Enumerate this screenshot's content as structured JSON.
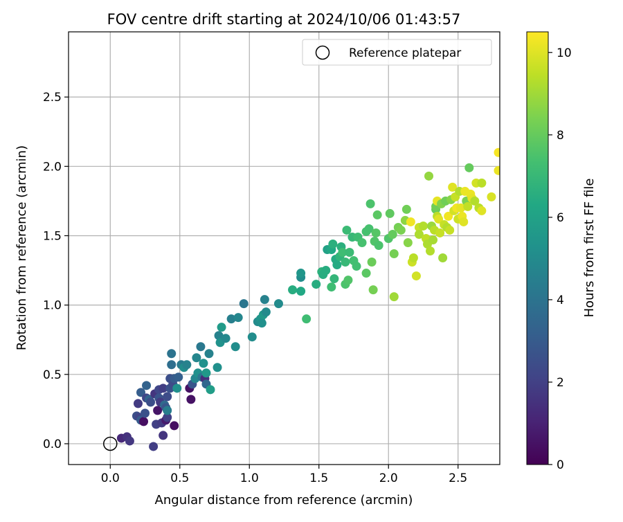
{
  "chart_data": {
    "type": "scatter",
    "title": "FOV centre drift starting at 2024/10/06 01:43:57",
    "xlabel": "Angular distance from reference (arcmin)",
    "ylabel": "Rotation from reference (arcmin)",
    "xlim": [
      -0.3,
      2.8
    ],
    "ylim": [
      -0.15,
      2.97
    ],
    "xticks": [
      "0.0",
      "0.5",
      "1.0",
      "1.5",
      "2.0",
      "2.5"
    ],
    "yticks": [
      "0.0",
      "0.5",
      "1.0",
      "1.5",
      "2.0",
      "2.5"
    ],
    "grid": true,
    "legend": {
      "placement": "top-right",
      "entries": [
        "Reference platepar"
      ]
    },
    "reference_point": {
      "x": 0.0,
      "y": 0.0
    },
    "colorbar": {
      "label": "Hours from first FF file",
      "colormap": "viridis",
      "range": [
        0,
        10.5
      ],
      "ticks": [
        "0",
        "2",
        "4",
        "6",
        "8",
        "10"
      ]
    },
    "points": [
      [
        0.08,
        0.04,
        1.2
      ],
      [
        0.12,
        0.05,
        1.5
      ],
      [
        0.14,
        0.02,
        1.7
      ],
      [
        0.31,
        -0.02,
        1.9
      ],
      [
        0.19,
        0.2,
        2.5
      ],
      [
        0.2,
        0.29,
        1.8
      ],
      [
        0.21,
        0.19,
        2.1
      ],
      [
        0.22,
        0.17,
        3.0
      ],
      [
        0.24,
        0.16,
        0.4
      ],
      [
        0.25,
        0.22,
        2.6
      ],
      [
        0.22,
        0.37,
        3.1
      ],
      [
        0.26,
        0.33,
        2.2
      ],
      [
        0.26,
        0.42,
        3.3
      ],
      [
        0.28,
        0.32,
        3.4
      ],
      [
        0.29,
        0.3,
        2.5
      ],
      [
        0.32,
        0.36,
        1.6
      ],
      [
        0.33,
        0.14,
        2.0
      ],
      [
        0.34,
        0.24,
        0.6
      ],
      [
        0.35,
        0.39,
        2.2
      ],
      [
        0.35,
        0.33,
        2.7
      ],
      [
        0.36,
        0.3,
        1.8
      ],
      [
        0.37,
        0.15,
        1.8
      ],
      [
        0.38,
        0.06,
        1.6
      ],
      [
        0.38,
        0.4,
        1.9
      ],
      [
        0.4,
        0.17,
        0.8
      ],
      [
        0.39,
        0.28,
        3.6
      ],
      [
        0.4,
        0.26,
        2.8
      ],
      [
        0.41,
        0.19,
        2.0
      ],
      [
        0.41,
        0.24,
        4.4
      ],
      [
        0.41,
        0.34,
        2.4
      ],
      [
        0.43,
        0.4,
        2.6
      ],
      [
        0.43,
        0.47,
        2.5
      ],
      [
        0.44,
        0.57,
        3.8
      ],
      [
        0.44,
        0.65,
        4.0
      ],
      [
        0.45,
        0.43,
        2.4
      ],
      [
        0.46,
        0.13,
        0.4
      ],
      [
        0.46,
        0.47,
        3.0
      ],
      [
        0.48,
        0.4,
        5.2
      ],
      [
        0.49,
        0.48,
        3.2
      ],
      [
        0.51,
        0.57,
        4.3
      ],
      [
        0.53,
        0.55,
        5.1
      ],
      [
        0.55,
        0.57,
        4.6
      ],
      [
        0.57,
        0.4,
        0.5
      ],
      [
        0.58,
        0.32,
        0.5
      ],
      [
        0.59,
        0.43,
        2.8
      ],
      [
        0.61,
        0.47,
        4.8
      ],
      [
        0.62,
        0.62,
        4.8
      ],
      [
        0.63,
        0.51,
        5.2
      ],
      [
        0.65,
        0.7,
        4.2
      ],
      [
        0.66,
        0.48,
        4.1
      ],
      [
        0.67,
        0.58,
        5.3
      ],
      [
        0.68,
        0.47,
        1.4
      ],
      [
        0.69,
        0.43,
        3.5
      ],
      [
        0.69,
        0.51,
        5.6
      ],
      [
        0.71,
        0.65,
        4.6
      ],
      [
        0.72,
        0.39,
        5.8
      ],
      [
        0.77,
        0.55,
        5.2
      ],
      [
        0.78,
        0.78,
        4.6
      ],
      [
        0.79,
        0.73,
        5.3
      ],
      [
        0.8,
        0.84,
        5.7
      ],
      [
        0.83,
        0.76,
        4.9
      ],
      [
        0.87,
        0.9,
        4.5
      ],
      [
        0.9,
        0.7,
        5.1
      ],
      [
        0.92,
        0.91,
        4.8
      ],
      [
        0.96,
        1.01,
        4.1
      ],
      [
        1.02,
        0.77,
        5.1
      ],
      [
        1.06,
        0.88,
        5.0
      ],
      [
        1.08,
        0.9,
        5.4
      ],
      [
        1.09,
        0.87,
        5.2
      ],
      [
        1.1,
        0.93,
        5.6
      ],
      [
        1.12,
        0.95,
        5.0
      ],
      [
        1.11,
        1.04,
        4.6
      ],
      [
        1.21,
        1.01,
        5.0
      ],
      [
        1.31,
        1.11,
        6.5
      ],
      [
        1.37,
        1.1,
        6.3
      ],
      [
        1.37,
        1.2,
        5.1
      ],
      [
        1.37,
        1.23,
        5.5
      ],
      [
        1.41,
        0.9,
        7.2
      ],
      [
        1.48,
        1.15,
        6.5
      ],
      [
        1.52,
        1.24,
        6.7
      ],
      [
        1.53,
        1.22,
        6.5
      ],
      [
        1.55,
        1.25,
        6.5
      ],
      [
        1.56,
        1.4,
        6.0
      ],
      [
        1.59,
        1.4,
        6.3
      ],
      [
        1.6,
        1.44,
        6.6
      ],
      [
        1.59,
        1.13,
        7.2
      ],
      [
        1.61,
        1.19,
        6.9
      ],
      [
        1.62,
        1.33,
        6.4
      ],
      [
        1.63,
        1.29,
        6.4
      ],
      [
        1.65,
        1.35,
        6.8
      ],
      [
        1.66,
        1.42,
        6.6
      ],
      [
        1.67,
        1.38,
        7.2
      ],
      [
        1.69,
        1.31,
        7.0
      ],
      [
        1.69,
        1.15,
        7.5
      ],
      [
        1.7,
        1.54,
        7.1
      ],
      [
        1.71,
        1.18,
        7.6
      ],
      [
        1.72,
        1.38,
        7.1
      ],
      [
        1.74,
        1.49,
        7.0
      ],
      [
        1.75,
        1.32,
        7.3
      ],
      [
        1.77,
        1.28,
        7.3
      ],
      [
        1.78,
        1.49,
        7.2
      ],
      [
        1.81,
        1.45,
        7.4
      ],
      [
        1.84,
        1.53,
        7.4
      ],
      [
        1.84,
        1.23,
        7.8
      ],
      [
        1.86,
        1.55,
        7.4
      ],
      [
        1.87,
        1.73,
        7.5
      ],
      [
        1.88,
        1.31,
        8.1
      ],
      [
        1.89,
        1.11,
        8.3
      ],
      [
        1.9,
        1.46,
        7.6
      ],
      [
        1.91,
        1.52,
        7.7
      ],
      [
        1.92,
        1.65,
        7.8
      ],
      [
        1.93,
        1.43,
        7.5
      ],
      [
        2.0,
        1.48,
        7.6
      ],
      [
        2.01,
        1.66,
        7.9
      ],
      [
        2.03,
        1.51,
        8.0
      ],
      [
        2.04,
        1.37,
        8.3
      ],
      [
        2.04,
        1.06,
        9.0
      ],
      [
        2.07,
        1.56,
        8.3
      ],
      [
        2.09,
        1.54,
        8.4
      ],
      [
        2.12,
        1.61,
        8.7
      ],
      [
        2.13,
        1.69,
        8.2
      ],
      [
        2.14,
        1.45,
        8.6
      ],
      [
        2.16,
        1.6,
        10.3
      ],
      [
        2.17,
        1.31,
        9.7
      ],
      [
        2.18,
        1.34,
        9.4
      ],
      [
        2.2,
        1.21,
        9.8
      ],
      [
        2.22,
        1.56,
        9.6
      ],
      [
        2.22,
        1.51,
        9.2
      ],
      [
        2.25,
        1.57,
        9.3
      ],
      [
        2.27,
        1.48,
        9.5
      ],
      [
        2.28,
        1.44,
        9.2
      ],
      [
        2.29,
        1.93,
        8.8
      ],
      [
        2.3,
        1.39,
        9.3
      ],
      [
        2.31,
        1.57,
        8.9
      ],
      [
        2.32,
        1.47,
        9.1
      ],
      [
        2.33,
        1.54,
        9.4
      ],
      [
        2.34,
        1.69,
        8.0
      ],
      [
        2.34,
        1.71,
        8.2
      ],
      [
        2.35,
        1.75,
        10.1
      ],
      [
        2.35,
        1.64,
        9.4
      ],
      [
        2.36,
        1.62,
        10.0
      ],
      [
        2.37,
        1.52,
        9.6
      ],
      [
        2.38,
        1.73,
        8.5
      ],
      [
        2.39,
        1.34,
        9.0
      ],
      [
        2.4,
        1.58,
        9.6
      ],
      [
        2.41,
        1.75,
        8.2
      ],
      [
        2.42,
        1.56,
        9.3
      ],
      [
        2.43,
        1.64,
        10.3
      ],
      [
        2.44,
        1.54,
        9.6
      ],
      [
        2.45,
        1.76,
        8.6
      ],
      [
        2.46,
        1.85,
        10.0
      ],
      [
        2.47,
        1.68,
        9.8
      ],
      [
        2.48,
        1.78,
        9.6
      ],
      [
        2.49,
        1.7,
        10.3
      ],
      [
        2.5,
        1.62,
        9.7
      ],
      [
        2.51,
        1.82,
        9.3
      ],
      [
        2.52,
        1.7,
        10.1
      ],
      [
        2.53,
        1.64,
        10.2
      ],
      [
        2.54,
        1.6,
        10.0
      ],
      [
        2.55,
        1.82,
        10.2
      ],
      [
        2.56,
        1.75,
        8.4
      ],
      [
        2.57,
        1.71,
        9.5
      ],
      [
        2.58,
        1.99,
        8.0
      ],
      [
        2.59,
        1.8,
        10.2
      ],
      [
        2.6,
        1.77,
        10.1
      ],
      [
        2.62,
        1.75,
        9.3
      ],
      [
        2.63,
        1.88,
        9.8
      ],
      [
        2.65,
        1.7,
        9.4
      ],
      [
        2.67,
        1.88,
        9.4
      ],
      [
        2.67,
        1.68,
        10.0
      ],
      [
        2.74,
        1.78,
        9.9
      ],
      [
        2.79,
        2.1,
        10.4
      ],
      [
        2.79,
        1.97,
        10.2
      ]
    ]
  }
}
